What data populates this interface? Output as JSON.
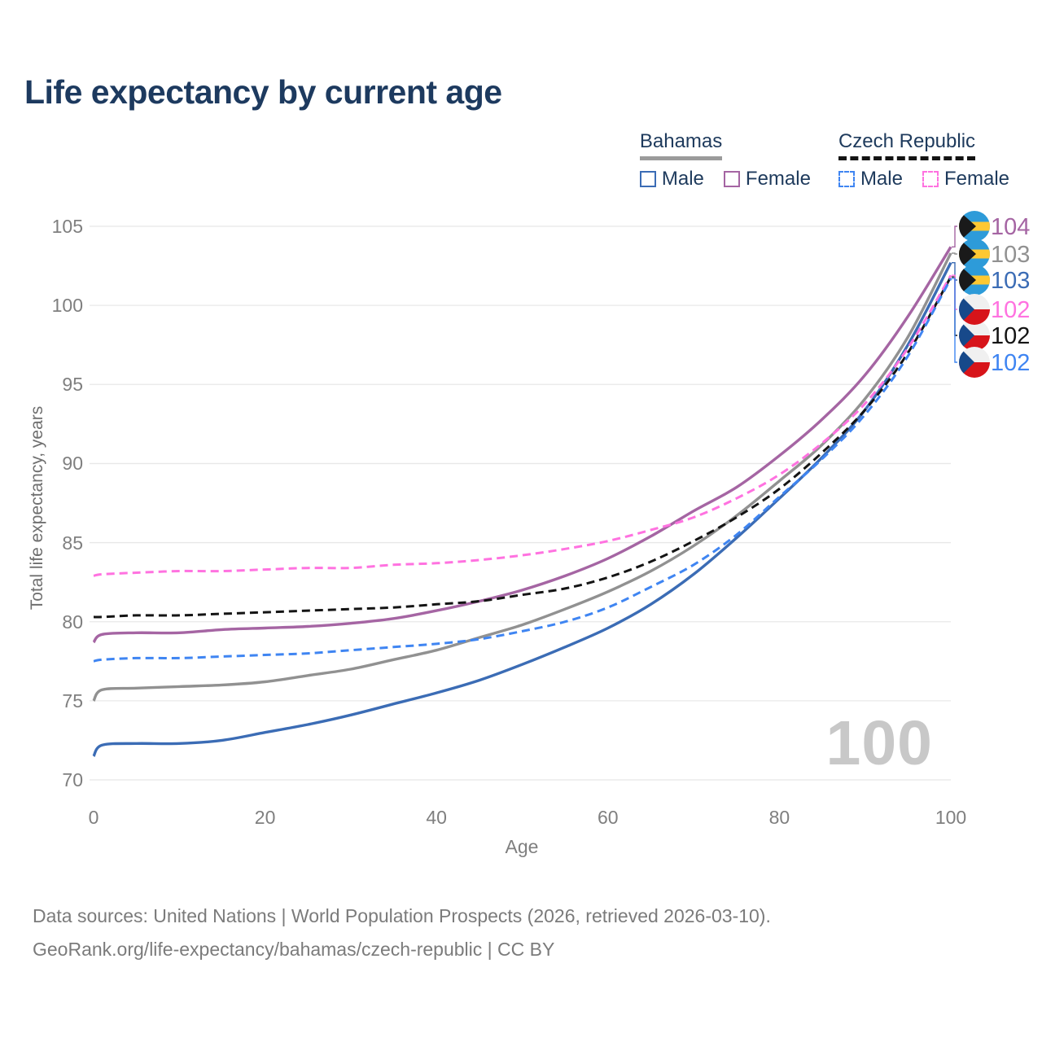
{
  "title": "Life expectancy by current age",
  "legend": {
    "groups": [
      {
        "label": "Bahamas",
        "line_style": "solid",
        "header_underline_color": "#9b9b9b",
        "items": [
          {
            "label": "Male",
            "color": "#3b6cb5"
          },
          {
            "label": "Female",
            "color": "#a565a3"
          }
        ]
      },
      {
        "label": "Czech Republic",
        "line_style": "dashed",
        "header_underline_color": "#141414",
        "items": [
          {
            "label": "Male",
            "color": "#3f85f2"
          },
          {
            "label": "Female",
            "color": "#ff72e0"
          }
        ]
      }
    ]
  },
  "chart_data": {
    "type": "line",
    "title": "Life expectancy by current age",
    "xlabel": "Age",
    "ylabel": "Total life expectancy, years",
    "xlim": [
      0,
      100
    ],
    "ylim": [
      70,
      105
    ],
    "xticks": [
      0,
      20,
      40,
      60,
      80,
      100
    ],
    "yticks": [
      70,
      75,
      80,
      85,
      90,
      95,
      100,
      105
    ],
    "grid": "horizontal-only",
    "legend_position": "top-right",
    "age_indicator": "100",
    "x": [
      0,
      1,
      5,
      10,
      15,
      20,
      25,
      30,
      35,
      40,
      45,
      50,
      55,
      60,
      65,
      70,
      75,
      80,
      85,
      90,
      95,
      100
    ],
    "series": [
      {
        "name": "Bahamas",
        "country": "Bahamas",
        "group": "Both",
        "color": "#919191",
        "dashed": false,
        "flag": "bahamas",
        "end_label": "103",
        "slot": 1,
        "values": [
          75.0,
          75.7,
          75.8,
          75.9,
          76.0,
          76.2,
          76.6,
          77.0,
          77.6,
          78.2,
          79.0,
          79.8,
          80.8,
          81.9,
          83.2,
          84.8,
          86.7,
          88.9,
          91.2,
          94.1,
          98.0,
          103.3
        ]
      },
      {
        "name": "Bahamas Female",
        "country": "Bahamas",
        "group": "Female",
        "color": "#a565a3",
        "dashed": false,
        "flag": "bahamas",
        "end_label": "104",
        "slot": 0,
        "values": [
          78.7,
          79.2,
          79.3,
          79.3,
          79.5,
          79.6,
          79.7,
          79.9,
          80.2,
          80.7,
          81.3,
          82.0,
          82.9,
          84.0,
          85.4,
          87.0,
          88.5,
          90.5,
          92.8,
          95.6,
          99.3,
          103.7
        ]
      },
      {
        "name": "Bahamas Male",
        "country": "Bahamas",
        "group": "Male",
        "color": "#3b6cb5",
        "dashed": false,
        "flag": "bahamas",
        "end_label": "103",
        "slot": 2,
        "values": [
          71.5,
          72.2,
          72.3,
          72.3,
          72.5,
          73.0,
          73.5,
          74.1,
          74.8,
          75.5,
          76.3,
          77.3,
          78.4,
          79.6,
          81.1,
          83.0,
          85.3,
          87.8,
          90.4,
          93.4,
          97.5,
          102.7
        ]
      },
      {
        "name": "Czech Republic",
        "country": "Czech Republic",
        "group": "Both",
        "color": "#141414",
        "dashed": true,
        "flag": "czech",
        "end_label": "102",
        "slot": 4,
        "values": [
          80.3,
          80.3,
          80.4,
          80.4,
          80.5,
          80.6,
          80.7,
          80.8,
          80.9,
          81.1,
          81.3,
          81.7,
          82.1,
          82.8,
          83.8,
          85.1,
          86.6,
          88.4,
          90.7,
          93.4,
          97.0,
          101.8
        ]
      },
      {
        "name": "Czech Republic Female",
        "country": "Czech Republic",
        "group": "Female",
        "color": "#ff72e0",
        "dashed": true,
        "flag": "czech",
        "end_label": "102",
        "slot": 3,
        "values": [
          82.9,
          83.0,
          83.1,
          83.2,
          83.2,
          83.3,
          83.4,
          83.4,
          83.6,
          83.7,
          83.9,
          84.2,
          84.6,
          85.1,
          85.8,
          86.6,
          87.8,
          89.3,
          91.3,
          93.8,
          97.3,
          101.9
        ]
      },
      {
        "name": "Czech Republic Male",
        "country": "Czech Republic",
        "group": "Male",
        "color": "#3f85f2",
        "dashed": true,
        "flag": "czech",
        "end_label": "102",
        "slot": 5,
        "values": [
          77.5,
          77.6,
          77.7,
          77.7,
          77.8,
          77.9,
          78.0,
          78.2,
          78.4,
          78.6,
          78.9,
          79.4,
          80.0,
          80.9,
          82.2,
          83.6,
          85.5,
          87.9,
          90.3,
          93.1,
          96.8,
          101.7
        ]
      }
    ]
  },
  "footer": {
    "line1": "Data sources: United Nations | World Population Prospects (2026, retrieved 2026-03-10).",
    "line2": "GeoRank.org/life-expectancy/bahamas/czech-republic | CC BY"
  }
}
